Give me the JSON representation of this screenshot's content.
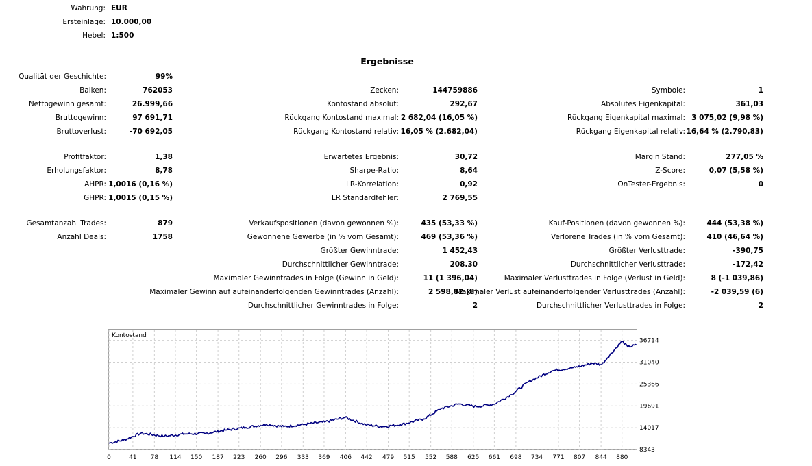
{
  "header": {
    "currency_label": "Währung:",
    "currency_value": "EUR",
    "deposit_label": "Ersteinlage:",
    "deposit_value": "10.000,00",
    "leverage_label": "Hebel:",
    "leverage_value": "1:500"
  },
  "results_title": "Ergebnisse",
  "col1": [
    {
      "label": "Qualität der Geschichte:",
      "value": "99%"
    },
    {
      "label": "Balken:",
      "value": "762053"
    },
    {
      "label": "Nettogewinn gesamt:",
      "value": "26.999,66"
    },
    {
      "label": "Bruttogewinn:",
      "value": "97 691,71"
    },
    {
      "label": "Bruttoverlust:",
      "value": "-70 692,05"
    },
    {
      "label": "Profitfaktor:",
      "value": "1,38"
    },
    {
      "label": "Erholungsfaktor:",
      "value": "8,78"
    },
    {
      "label": "AHPR:",
      "value": "1,0016 (0,16 %)"
    },
    {
      "label": "GHPR:",
      "value": "1,0015 (0,15 %)"
    },
    {
      "label": "Gesamtanzahl Trades:",
      "value": "879"
    },
    {
      "label": "Anzahl Deals:",
      "value": "1758"
    }
  ],
  "col2": [
    {
      "label": "Zecken:",
      "value": "144759886"
    },
    {
      "label": "Kontostand absolut:",
      "value": "292,67"
    },
    {
      "label": "Rückgang Kontostand maximal:",
      "value": "2 682,04 (16,05 %)"
    },
    {
      "label": "Rückgang Kontostand relativ:",
      "value": "16,05 % (2.682,04)"
    },
    {
      "label": "Erwartetes Ergebnis:",
      "value": "30,72"
    },
    {
      "label": "Sharpe-Ratio:",
      "value": "8,64"
    },
    {
      "label": "LR-Korrelation:",
      "value": "0,92"
    },
    {
      "label": "LR Standardfehler:",
      "value": "2 769,55"
    },
    {
      "label": "Verkaufspositionen (davon gewonnen %):",
      "value": "435 (53,33 %)"
    },
    {
      "label": "Gewonnene Gewerbe (in % vom Gesamt):",
      "value": "469 (53,36 %)"
    },
    {
      "label": "Größter Gewinntrade:",
      "value": "1 452,43"
    },
    {
      "label": "Durchschnittlicher Gewinntrade:",
      "value": "208.30"
    },
    {
      "label": "Maximaler Gewinntrades in Folge (Gewinn in Geld):",
      "value": "11 (1 396,04)"
    },
    {
      "label": "Maximaler Gewinn auf aufeinanderfolgenden Gewinntrades (Anzahl):",
      "value": "2 598,82 (8)"
    },
    {
      "label": "Durchschnittlicher Gewinntrades in Folge:",
      "value": "2"
    }
  ],
  "col3": [
    {
      "label": "Symbole:",
      "value": "1"
    },
    {
      "label": "Absolutes Eigenkapital:",
      "value": "361,03"
    },
    {
      "label": "Rückgang Eigenkapital maximal:",
      "value": "3 075,02 (9,98 %)"
    },
    {
      "label": "Rückgang Eigenkapital relativ:",
      "value": "16,64 % (2.790,83)"
    },
    {
      "label": "Margin Stand:",
      "value": "277,05 %"
    },
    {
      "label": "Z-Score:",
      "value": "0,07 (5,58 %)"
    },
    {
      "label": "OnTester-Ergebnis:",
      "value": "0"
    },
    {
      "label": "Kauf-Positionen (davon gewonnen %):",
      "value": "444 (53,38 %)"
    },
    {
      "label": "Verlorene Trades (in % vom Gesamt):",
      "value": "410 (46,64 %)"
    },
    {
      "label": "Größter Verlusttrade:",
      "value": "-390,75"
    },
    {
      "label": "Durchschnittlicher Verlusttrade:",
      "value": "-172,42"
    },
    {
      "label": "Maximaler Verlusttrades in Folge (Verlust in Geld):",
      "value": "8 (-1 039,86)"
    },
    {
      "label": "Maximaler Verlust aufeinanderfolgender Verlusttrades (Anzahl):",
      "value": "-2 039,59 (6)"
    },
    {
      "label": "Durchschnittlicher Verlusttrades in Folge:",
      "value": "2"
    }
  ],
  "chart_data": {
    "type": "line",
    "title": "Kontostand",
    "line_color": "#000080",
    "xlim": [
      0,
      905
    ],
    "ylim": [
      8343,
      39500
    ],
    "xticks": [
      0,
      41,
      78,
      114,
      150,
      187,
      223,
      260,
      296,
      333,
      369,
      406,
      442,
      479,
      515,
      552,
      588,
      625,
      661,
      698,
      734,
      771,
      807,
      844,
      880
    ],
    "yticks": [
      8343,
      14017,
      19691,
      25366,
      31040,
      36714
    ],
    "series": [
      {
        "name": "Kontostand",
        "x": [
          0,
          25,
          55,
          95,
          130,
          165,
          200,
          235,
          270,
          300,
          335,
          370,
          405,
          440,
          470,
          500,
          540,
          570,
          600,
          630,
          660,
          690,
          720,
          760,
          800,
          830,
          845,
          855,
          880,
          890,
          905
        ],
        "y": [
          10000,
          10800,
          12600,
          11800,
          12400,
          12500,
          13400,
          14100,
          14900,
          14300,
          14900,
          15500,
          16700,
          14800,
          14300,
          14800,
          16300,
          19000,
          20200,
          19500,
          20100,
          22600,
          26000,
          28800,
          29700,
          30800,
          30400,
          32200,
          36500,
          35000,
          35500
        ]
      }
    ]
  }
}
